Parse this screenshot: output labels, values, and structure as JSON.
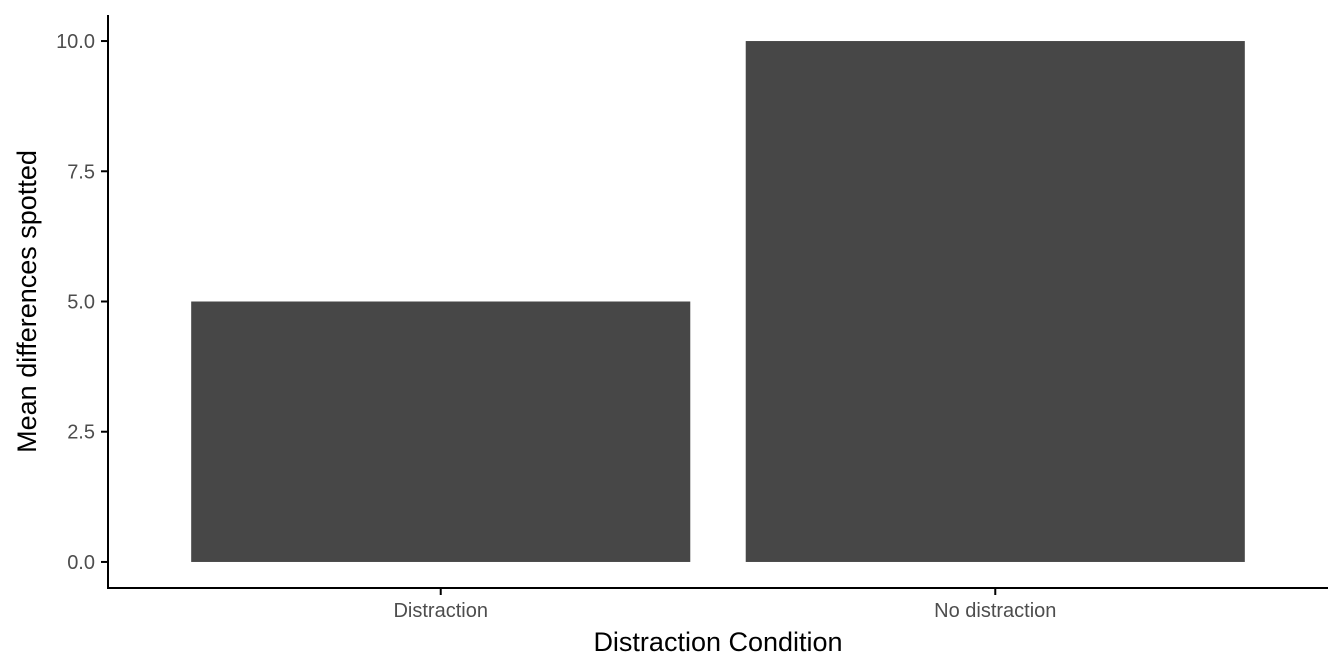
{
  "chart_data": {
    "type": "bar",
    "categories": [
      "Distraction",
      "No distraction"
    ],
    "values": [
      5.0,
      10.0
    ],
    "title": "",
    "xlabel": "Distraction Condition",
    "ylabel": "Mean differences spotted",
    "ylim": [
      -0.5,
      10.5
    ],
    "yticks": [
      0.0,
      2.5,
      5.0,
      7.5,
      10.0
    ],
    "ytick_labels": [
      "0.0",
      "2.5",
      "5.0",
      "7.5",
      "10.0"
    ],
    "grid": false,
    "legend": "none",
    "bar_color": "#474747",
    "axis_color": "#000000",
    "tick_label_color": "#4d4d4d"
  }
}
